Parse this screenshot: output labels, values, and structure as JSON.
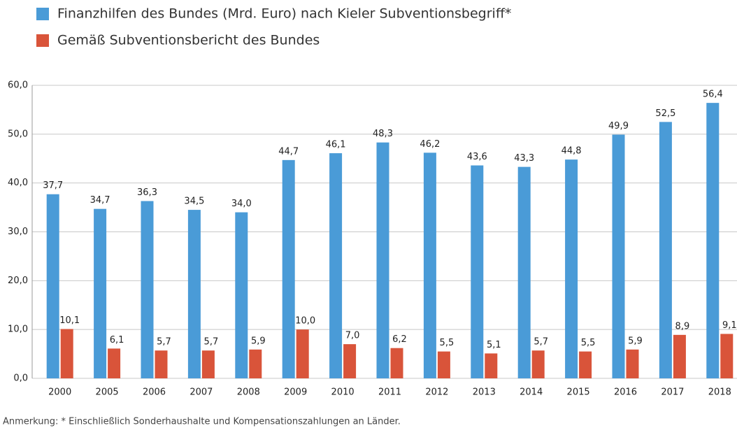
{
  "chart_data": {
    "type": "bar",
    "categories": [
      "2000",
      "2005",
      "2006",
      "2007",
      "2008",
      "2009",
      "2010",
      "2011",
      "2012",
      "2013",
      "2014",
      "2015",
      "2016",
      "2017",
      "2018"
    ],
    "series": [
      {
        "name": "Finanzhilfen des Bundes (Mrd. Euro) nach Kieler Subventionsbegriff*",
        "color": "#4a9bd7",
        "values": [
          37.7,
          34.7,
          36.3,
          34.5,
          34.0,
          44.7,
          46.1,
          48.3,
          46.2,
          43.6,
          43.3,
          44.8,
          49.9,
          52.5,
          56.4
        ],
        "value_labels": [
          "37,7",
          "34,7",
          "36,3",
          "34,5",
          "34,0",
          "44,7",
          "46,1",
          "48,3",
          "46,2",
          "43,6",
          "43,3",
          "44,8",
          "49,9",
          "52,5",
          "56,4"
        ]
      },
      {
        "name": "Gemäß Subventionsbericht des Bundes",
        "color": "#d9543a",
        "values": [
          10.1,
          6.1,
          5.7,
          5.7,
          5.9,
          10.0,
          7.0,
          6.2,
          5.5,
          5.1,
          5.7,
          5.5,
          5.9,
          8.9,
          9.1
        ],
        "value_labels": [
          "10,1",
          "6,1",
          "5,7",
          "5,7",
          "5,9",
          "10,0",
          "7,0",
          "6,2",
          "5,5",
          "5,1",
          "5,7",
          "5,5",
          "5,9",
          "8,9",
          "9,1"
        ]
      }
    ],
    "ylim": [
      0,
      60
    ],
    "yticks": [
      {
        "value": 0,
        "label": "0,0"
      },
      {
        "value": 10,
        "label": "10,0"
      },
      {
        "value": 20,
        "label": "20,0"
      },
      {
        "value": 30,
        "label": "30,0"
      },
      {
        "value": 40,
        "label": "40,0"
      },
      {
        "value": 50,
        "label": "50,0"
      },
      {
        "value": 60,
        "label": "60,0"
      }
    ],
    "grid": true,
    "note": "Anmerkung: * Einschließlich Sonderhaushalte und Kompensationszahlungen an Länder."
  }
}
